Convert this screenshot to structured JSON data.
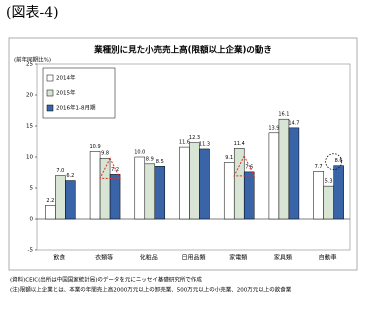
{
  "header": "(図表-4)",
  "chart_data": {
    "type": "bar",
    "title": "業種別に見た小売売上高(限額以上企業)の動き",
    "y_label": "(前年同期比%)",
    "categories": [
      "飲食",
      "衣類等",
      "化粧品",
      "日用品類",
      "家電類",
      "家具類",
      "自動車"
    ],
    "series": [
      {
        "name": "2014年",
        "color": "#ffffff",
        "values": [
          2.2,
          10.9,
          10.0,
          11.6,
          9.1,
          13.9,
          7.7
        ],
        "value_labels": [
          "2.2",
          "10.9",
          "10.0",
          "11.6",
          "9.1",
          "13.9",
          "7.7"
        ]
      },
      {
        "name": "2015年",
        "color": "#d8e4d4",
        "values": [
          7.0,
          9.8,
          8.9,
          12.3,
          11.4,
          16.1,
          5.3
        ],
        "value_labels": [
          "7.0",
          "9.8",
          "8.9",
          "12.3",
          "11.4",
          "16.1",
          "5.3"
        ]
      },
      {
        "name": "2016年1-8月期",
        "color": "#3a64a8",
        "values": [
          6.2,
          7.2,
          8.5,
          11.3,
          7.6,
          14.7,
          8.6
        ],
        "value_labels": [
          "6.2",
          "7.2",
          "8.5",
          "11.3",
          "7.6",
          "14.7",
          "8.6"
        ]
      }
    ],
    "ylim": [
      -5,
      25
    ],
    "yticks": [
      25,
      20,
      15,
      10,
      5,
      0,
      -5
    ],
    "grid": false,
    "legend": "top-left"
  },
  "notes": [
    "(資料)CEIC(出所は中国国家統計局)のデータを元にニッセイ基礎研究所で作成",
    "(注)限額以上企業とは、本業の年間売上高2000万元以上の卸売業、500万元以上の小売業、200万元以上の飲食業"
  ]
}
